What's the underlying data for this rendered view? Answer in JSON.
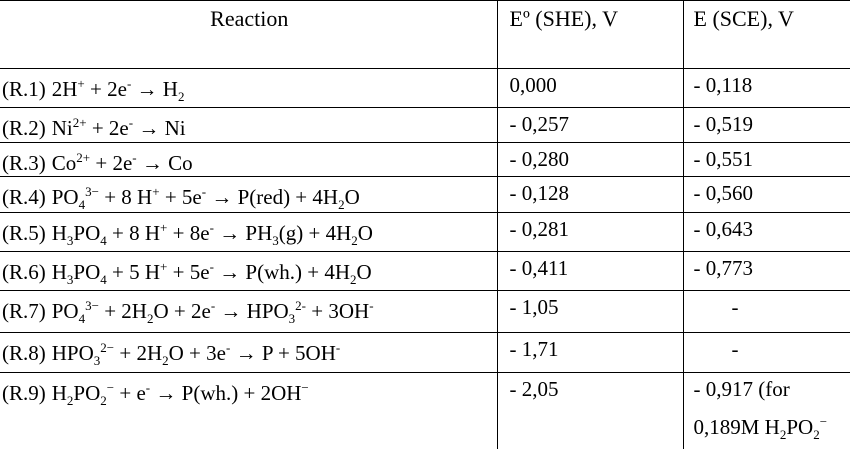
{
  "table": {
    "headers": [
      "Reaction",
      "Eº (SHE), V",
      "E (SCE), V"
    ],
    "rows": [
      {
        "label": "(R.1)",
        "reaction": [
          "2H",
          "+",
          " + 2e",
          "-",
          " → H",
          "2"
        ],
        "she": "0,000",
        "sce": "- 0,118"
      },
      {
        "label": "(R.2)",
        "reaction": [
          "Ni",
          "2+",
          " + 2e",
          "-",
          " → Ni"
        ],
        "she": "- 0,257",
        "sce": "- 0,519"
      },
      {
        "label": "(R.3)",
        "reaction": [
          "Co",
          "2+",
          " + 2e",
          "-",
          " → Co"
        ],
        "she": "- 0,280",
        "sce": "- 0,551"
      },
      {
        "label": "(R.4)",
        "reaction": [
          "PO",
          "4",
          "3−",
          " + 8 H",
          "+",
          " + 5e",
          "-",
          " → P(red) + 4H",
          "2",
          "O"
        ],
        "she": "- 0,128",
        "sce": "- 0,560"
      },
      {
        "label": "(R.5)",
        "reaction": [
          "H",
          "3",
          "PO",
          "4",
          " + 8 H",
          "+",
          " + 8e",
          "-",
          " → PH",
          "3",
          "(g) + 4H",
          "2",
          "O"
        ],
        "she": "- 0,281",
        "sce": "- 0,643"
      },
      {
        "label": "(R.6)",
        "reaction": [
          "H",
          "3",
          "PO",
          "4",
          " + 5 H",
          "+",
          " + 5e",
          "-",
          " → P(wh.) + 4H",
          "2",
          "O"
        ],
        "she": "- 0,411",
        "sce": "- 0,773"
      },
      {
        "label": "(R.7)",
        "reaction": [
          "PO",
          "4",
          "3−",
          " + 2H",
          "2",
          "O + 2e",
          "-",
          " → HPO",
          "3",
          "2-",
          " + 3OH",
          "-"
        ],
        "she": "- 1,05",
        "sce": "-"
      },
      {
        "label": "(R.8)",
        "reaction": [
          "HPO",
          "3",
          "2−",
          " + 2H",
          "2",
          "O + 3e",
          "-",
          " → P + 5OH",
          "-"
        ],
        "she": "- 1,71",
        "sce": "-"
      },
      {
        "label": "(R.9)",
        "reaction": [
          "H",
          "2",
          "PO",
          "2",
          "−",
          " + e",
          "-",
          " → P(wh.) + 2OH",
          "−"
        ],
        "she": "- 2,05",
        "sce": "- 0,917 (for",
        "sce_note": [
          "0,189M H",
          "2",
          "PO",
          "2",
          "−"
        ]
      }
    ]
  }
}
